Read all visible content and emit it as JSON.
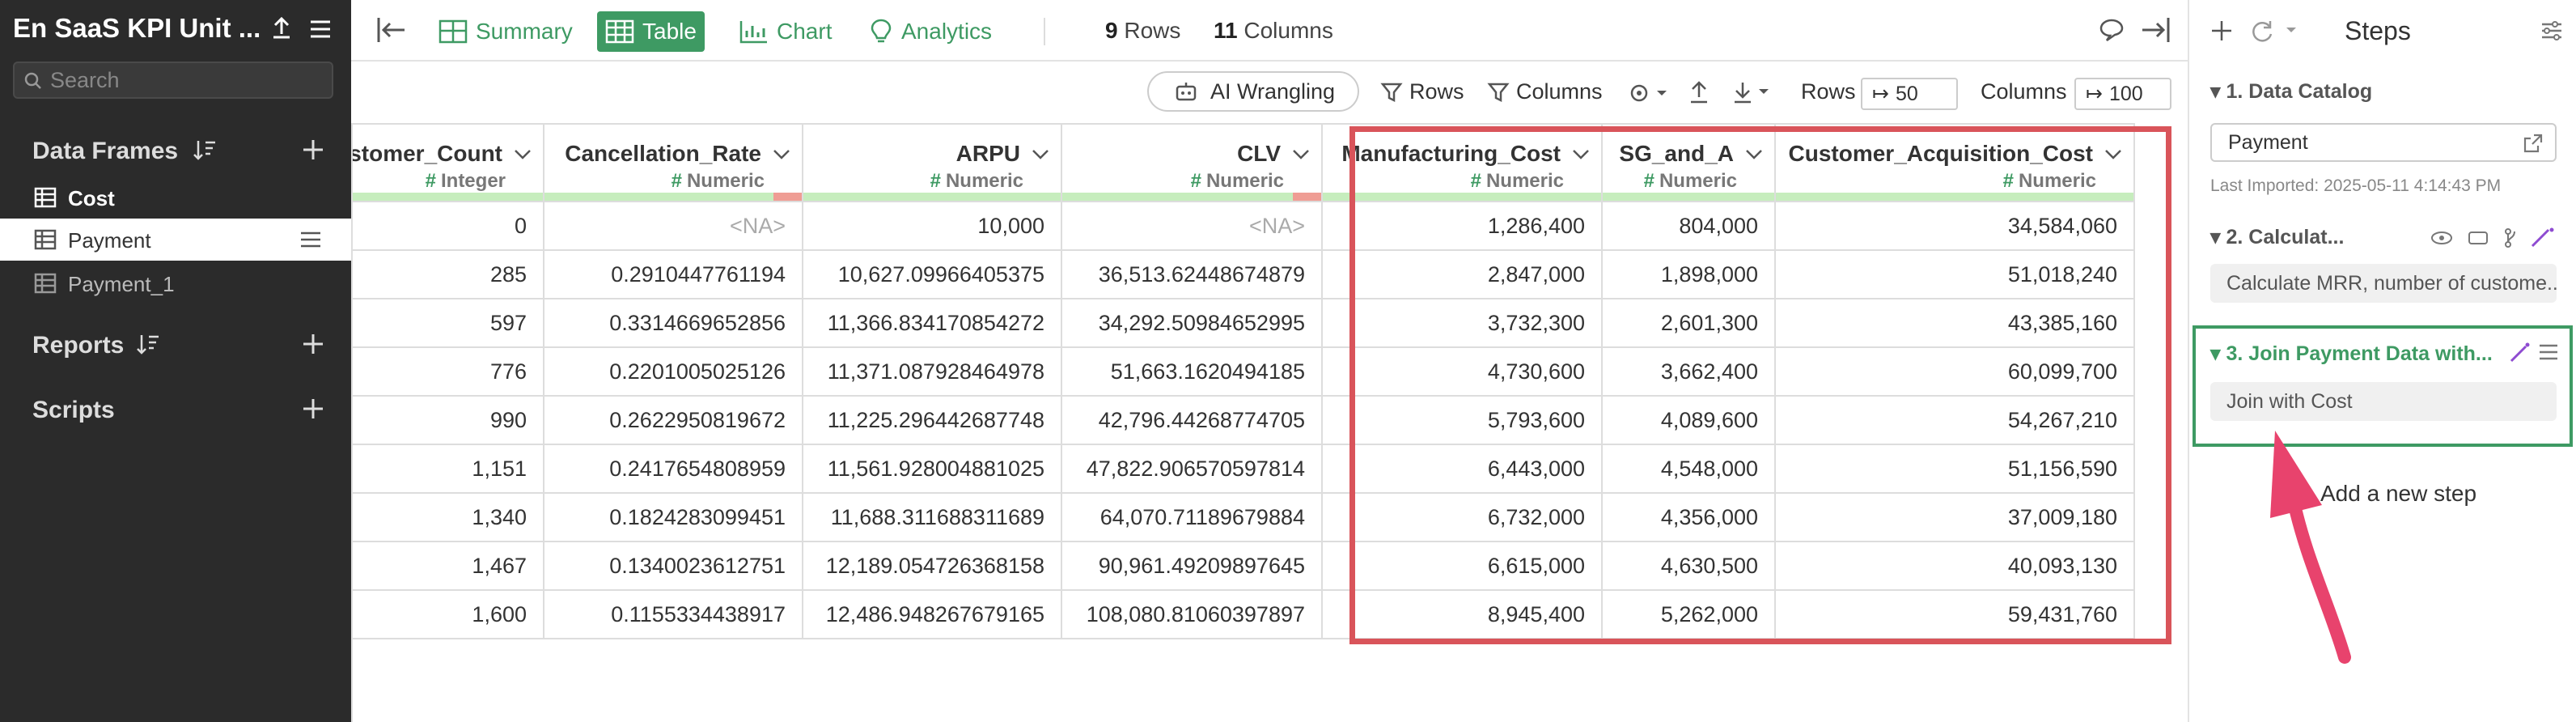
{
  "project": {
    "title": "En SaaS KPI Unit ..."
  },
  "sidebar": {
    "search_placeholder": "Search",
    "data_frames_label": "Data Frames",
    "data_frames": [
      {
        "label": "Cost"
      },
      {
        "label": "Payment"
      },
      {
        "label": "Payment_1"
      }
    ],
    "reports_label": "Reports",
    "scripts_label": "Scripts"
  },
  "toolbar": {
    "summary_label": "Summary",
    "table_label": "Table",
    "chart_label": "Chart",
    "analytics_label": "Analytics",
    "rows_count": "9",
    "rows_word": "Rows",
    "cols_count": "11",
    "cols_word": "Columns"
  },
  "toolbar2": {
    "ai_label": "AI Wrangling",
    "rows_filter_label": "Rows",
    "cols_filter_label": "Columns",
    "rows_label": "Rows",
    "rows_limit": "50",
    "cols_label": "Columns",
    "cols_limit": "100"
  },
  "table": {
    "columns": [
      {
        "name": "stomer_Count",
        "type": "Integer",
        "bad_fraction": 0
      },
      {
        "name": "Cancellation_Rate",
        "type": "Numeric",
        "bad_fraction": 0.11
      },
      {
        "name": "ARPU",
        "type": "Numeric",
        "bad_fraction": 0
      },
      {
        "name": "CLV",
        "type": "Numeric",
        "bad_fraction": 0.11
      },
      {
        "name": "Manufacturing_Cost",
        "type": "Numeric",
        "bad_fraction": 0
      },
      {
        "name": "SG_and_A",
        "type": "Numeric",
        "bad_fraction": 0
      },
      {
        "name": "Customer_Acquisition_Cost",
        "type": "Numeric",
        "bad_fraction": 0
      }
    ],
    "rows": [
      [
        "0",
        "<NA>",
        "10,000",
        "<NA>",
        "1,286,400",
        "804,000",
        "34,584,060"
      ],
      [
        "285",
        "0.2910447761194",
        "10,627.09966405375",
        "36,513.62448674879",
        "2,847,000",
        "1,898,000",
        "51,018,240"
      ],
      [
        "597",
        "0.3314669652856",
        "11,366.834170854272",
        "34,292.50984652995",
        "3,732,300",
        "2,601,300",
        "43,385,160"
      ],
      [
        "776",
        "0.2201005025126",
        "11,371.087928464978",
        "51,663.1620494185",
        "4,730,600",
        "3,662,400",
        "60,099,700"
      ],
      [
        "990",
        "0.2622950819672",
        "11,225.296442687748",
        "42,796.44268774705",
        "5,793,600",
        "4,089,600",
        "54,267,210"
      ],
      [
        "1,151",
        "0.2417654808959",
        "11,561.928004881025",
        "47,822.906570597814",
        "6,443,000",
        "4,548,000",
        "51,156,590"
      ],
      [
        "1,340",
        "0.1824283099451",
        "11,688.311688311689",
        "64,070.71189679884",
        "6,732,000",
        "4,356,000",
        "37,009,180"
      ],
      [
        "1,467",
        "0.1340023612751",
        "12,189.054726368158",
        "90,961.49209897645",
        "6,615,000",
        "4,630,500",
        "40,093,130"
      ],
      [
        "1,600",
        "0.1155334438917",
        "12,486.948267679165",
        "108,080.81060397897",
        "8,945,400",
        "5,262,000",
        "59,431,760"
      ]
    ]
  },
  "steps": {
    "title": "Steps",
    "step1": {
      "label": "1. Data Catalog",
      "source": "Payment",
      "imported": "Last Imported: 2025-05-11 4:14:43 PM"
    },
    "step2": {
      "label": "2. Calculat...",
      "desc": "Calculate MRR, number of custome..."
    },
    "step3": {
      "label": "3. Join Payment Data with...",
      "desc": "Join with Cost"
    },
    "add_step": "Add a new step"
  },
  "colors": {
    "accent": "#3e9a63",
    "highlight": "#d9545a",
    "sidebar_bg": "#2b2b2b",
    "arrow": "#e8436d"
  }
}
